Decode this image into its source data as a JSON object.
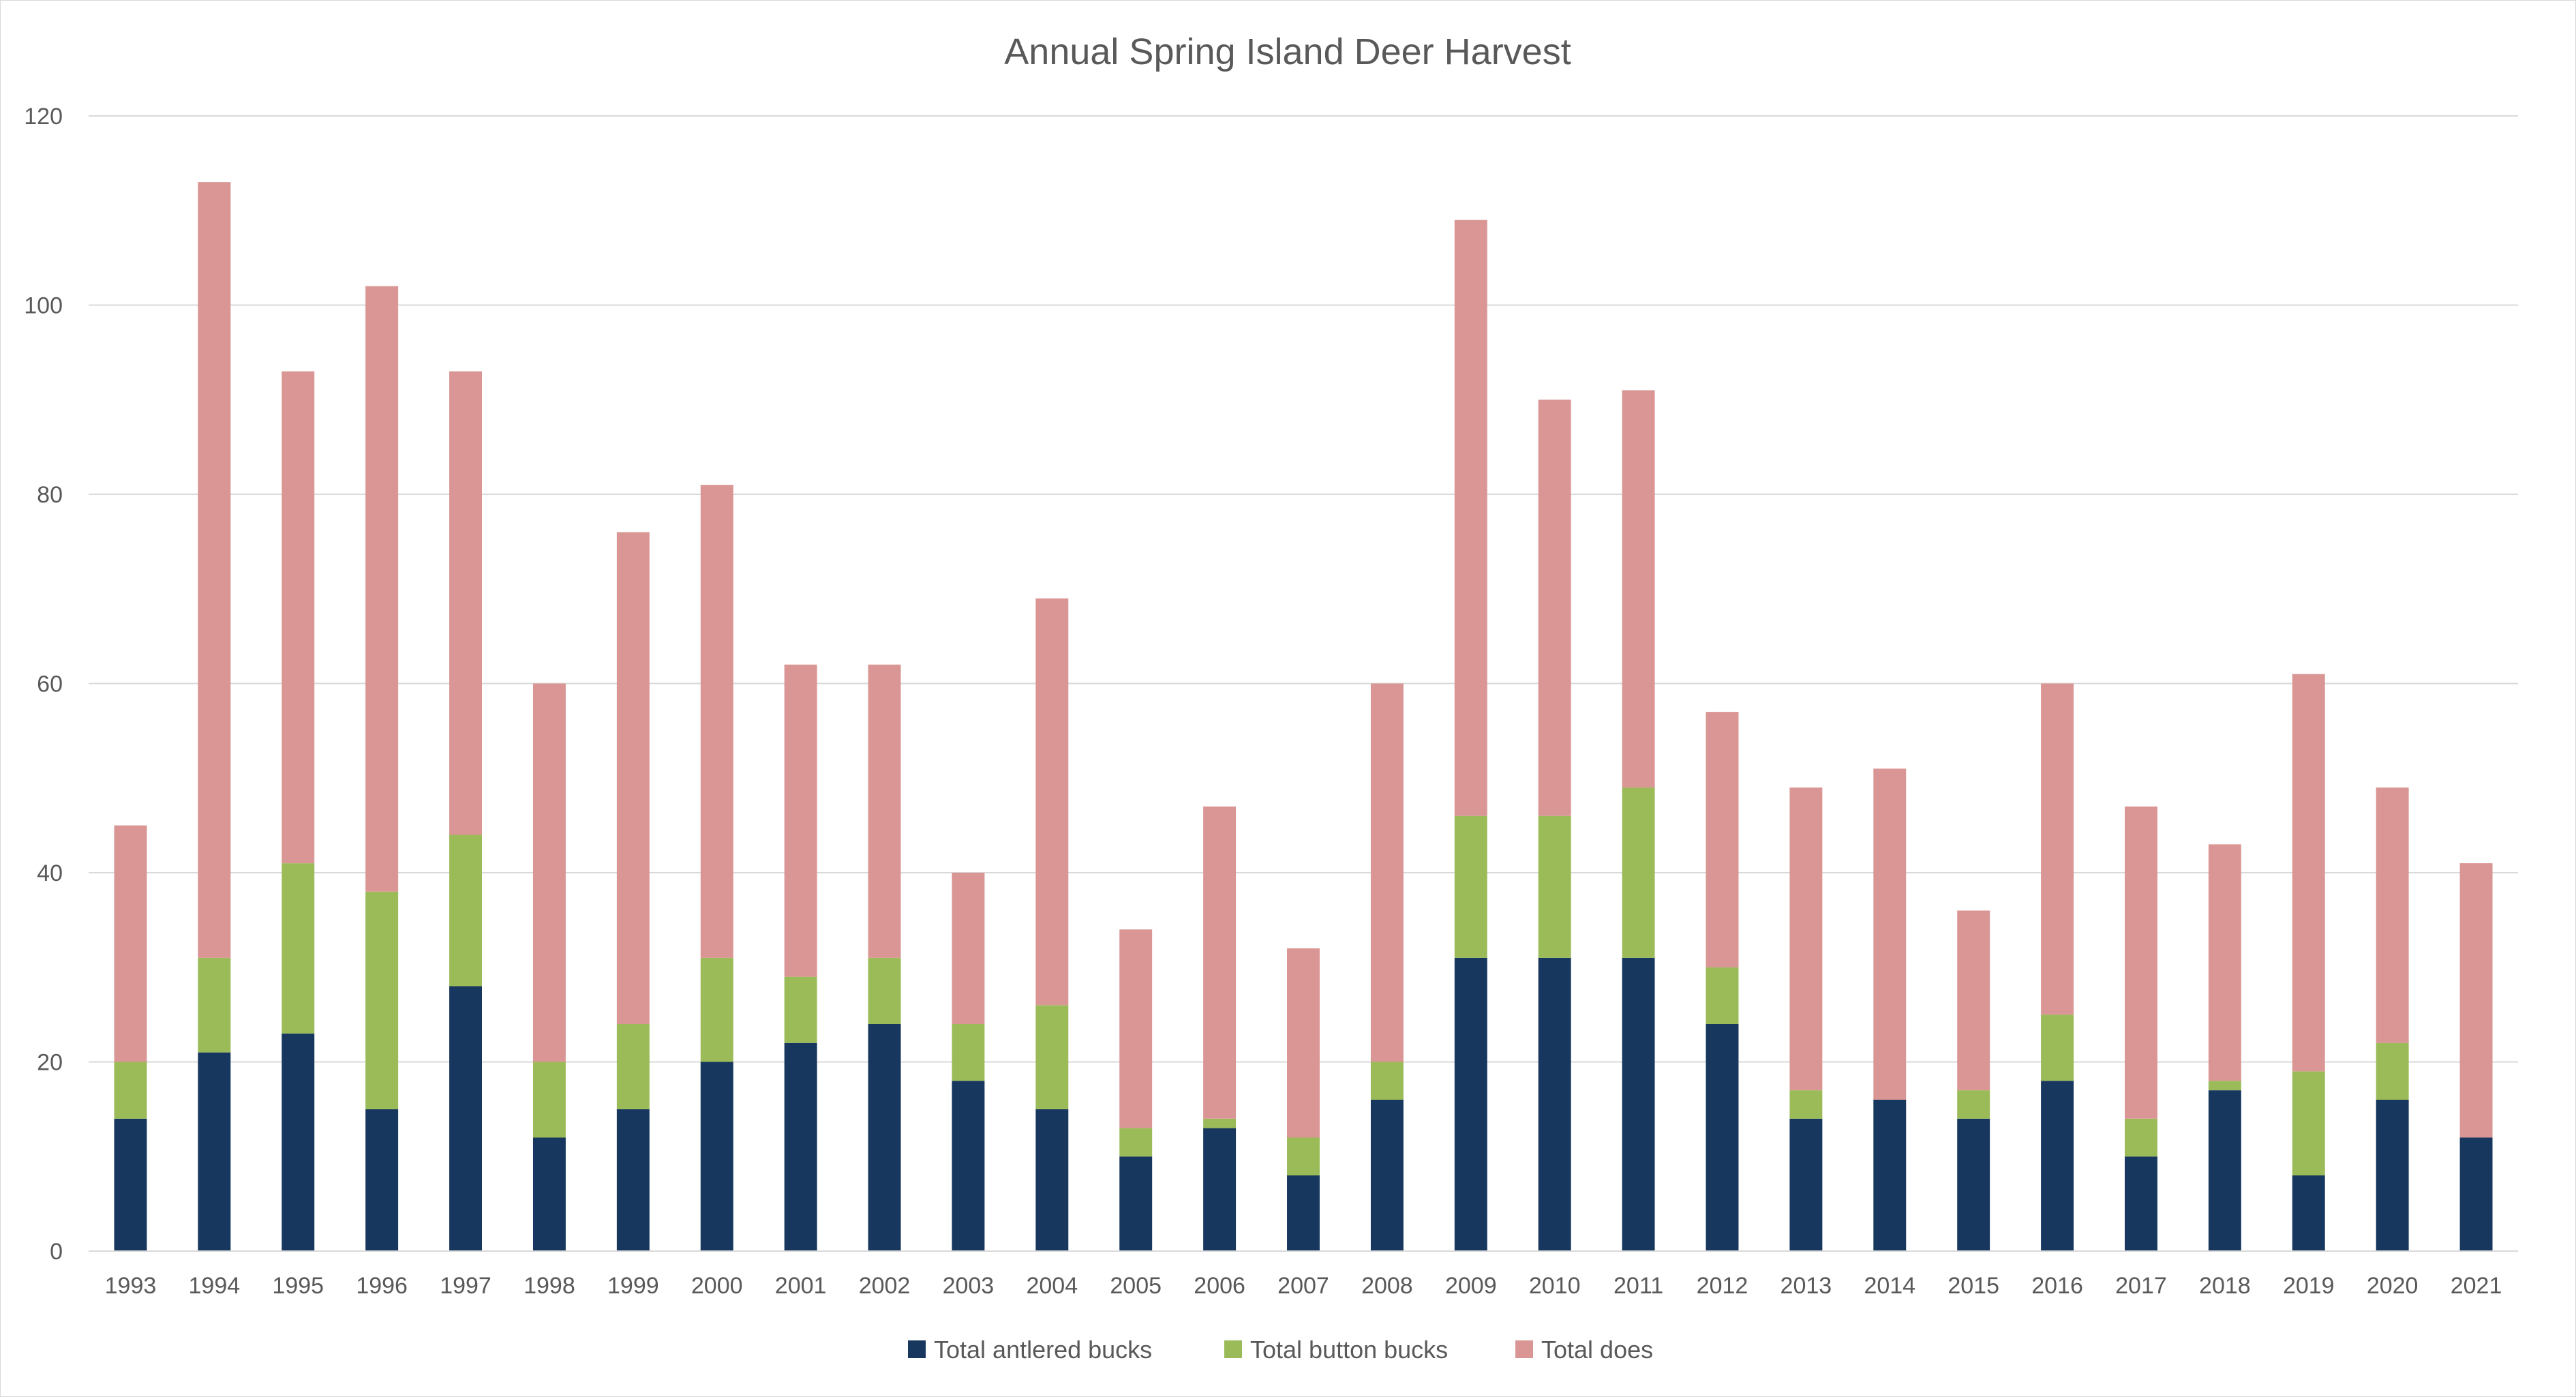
{
  "chart_data": {
    "type": "bar",
    "stacked": true,
    "title": "Annual Spring Island Deer Harvest",
    "xlabel": "",
    "ylabel": "",
    "ylim": [
      0,
      120
    ],
    "yticks": [
      0,
      20,
      40,
      60,
      80,
      100,
      120
    ],
    "grid": true,
    "legend_position": "bottom",
    "categories": [
      "1993",
      "1994",
      "1995",
      "1996",
      "1997",
      "1998",
      "1999",
      "2000",
      "2001",
      "2002",
      "2003",
      "2004",
      "2005",
      "2006",
      "2007",
      "2008",
      "2009",
      "2010",
      "2011",
      "2012",
      "2013",
      "2014",
      "2015",
      "2016",
      "2017",
      "2018",
      "2019",
      "2020",
      "2021"
    ],
    "series": [
      {
        "name": "Total antlered bucks",
        "color": "#17375e",
        "values": [
          14,
          21,
          23,
          15,
          28,
          12,
          15,
          20,
          22,
          24,
          18,
          15,
          10,
          13,
          8,
          16,
          31,
          31,
          31,
          24,
          14,
          16,
          14,
          18,
          10,
          17,
          8,
          16,
          12
        ]
      },
      {
        "name": "Total button bucks",
        "color": "#9bbb59",
        "values": [
          6,
          10,
          18,
          23,
          16,
          8,
          9,
          11,
          7,
          7,
          6,
          11,
          3,
          1,
          4,
          4,
          15,
          15,
          18,
          6,
          3,
          0,
          3,
          7,
          4,
          1,
          11,
          6,
          0
        ]
      },
      {
        "name": "Total does",
        "color": "#d99694",
        "values": [
          25,
          82,
          52,
          64,
          49,
          40,
          52,
          50,
          33,
          31,
          16,
          43,
          21,
          33,
          20,
          40,
          63,
          44,
          42,
          27,
          32,
          35,
          19,
          35,
          33,
          25,
          42,
          27,
          29
        ]
      }
    ]
  }
}
